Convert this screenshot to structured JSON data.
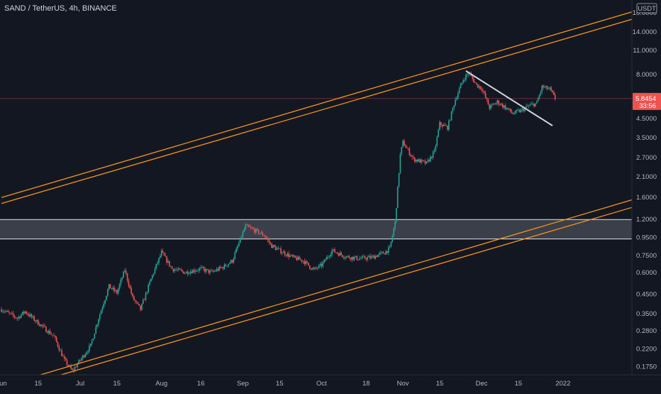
{
  "title": "SAND / TetherUS, 4h, BINANCE",
  "currency_label": "USDT",
  "colors": {
    "background": "#131722",
    "up": "#26a69a",
    "down": "#ef5350",
    "channel": "#f7931a",
    "trendline": "#d1d4dc",
    "zone_fill": "#5d606b",
    "zone_border": "#e0e3eb",
    "price_tag": "#ef5350"
  },
  "current_price": {
    "value": 5.8454,
    "label": "5.8454",
    "countdown": "33:56"
  },
  "chart_data": {
    "type": "candlestick",
    "y_scale": "log",
    "ylim": [
      0.16,
      19
    ],
    "y_ticks": [
      "18.0000",
      "14.0000",
      "11.0000",
      "8.0000",
      "6.0000",
      "4.5000",
      "3.5000",
      "2.7000",
      "2.1000",
      "1.6000",
      "1.2000",
      "0.9500",
      "0.7500",
      "0.6000",
      "0.4500",
      "0.3500",
      "0.2800",
      "0.2200",
      "0.1750"
    ],
    "x_ticks": [
      "Jun",
      "15",
      "Jul",
      "15",
      "Aug",
      "16",
      "Sep",
      "15",
      "Oct",
      "18",
      "Nov",
      "15",
      "Dec",
      "15",
      "2022"
    ],
    "price_path": [
      [
        "2021-06-01",
        0.37
      ],
      [
        "2021-06-07",
        0.33
      ],
      [
        "2021-06-10",
        0.36
      ],
      [
        "2021-06-15",
        0.31
      ],
      [
        "2021-06-21",
        0.26
      ],
      [
        "2021-06-25",
        0.19
      ],
      [
        "2021-06-28",
        0.165
      ],
      [
        "2021-07-01",
        0.19
      ],
      [
        "2021-07-05",
        0.23
      ],
      [
        "2021-07-08",
        0.33
      ],
      [
        "2021-07-12",
        0.5
      ],
      [
        "2021-07-15",
        0.46
      ],
      [
        "2021-07-18",
        0.62
      ],
      [
        "2021-07-21",
        0.43
      ],
      [
        "2021-07-24",
        0.37
      ],
      [
        "2021-07-28",
        0.55
      ],
      [
        "2021-08-01",
        0.78
      ],
      [
        "2021-08-05",
        0.63
      ],
      [
        "2021-08-10",
        0.6
      ],
      [
        "2021-08-16",
        0.63
      ],
      [
        "2021-08-20",
        0.6
      ],
      [
        "2021-08-25",
        0.65
      ],
      [
        "2021-08-28",
        0.7
      ],
      [
        "2021-08-31",
        0.92
      ],
      [
        "2021-09-02",
        1.1
      ],
      [
        "2021-09-05",
        1.05
      ],
      [
        "2021-09-09",
        0.98
      ],
      [
        "2021-09-12",
        0.85
      ],
      [
        "2021-09-15",
        0.8
      ],
      [
        "2021-09-20",
        0.73
      ],
      [
        "2021-09-24",
        0.7
      ],
      [
        "2021-09-28",
        0.62
      ],
      [
        "2021-10-01",
        0.66
      ],
      [
        "2021-10-05",
        0.8
      ],
      [
        "2021-10-10",
        0.74
      ],
      [
        "2021-10-15",
        0.72
      ],
      [
        "2021-10-20",
        0.73
      ],
      [
        "2021-10-25",
        0.78
      ],
      [
        "2021-10-27",
        0.82
      ],
      [
        "2021-10-29",
        1.15
      ],
      [
        "2021-10-31",
        2.8
      ],
      [
        "2021-11-01",
        3.3
      ],
      [
        "2021-11-05",
        2.65
      ],
      [
        "2021-11-10",
        2.5
      ],
      [
        "2021-11-13",
        2.9
      ],
      [
        "2021-11-15",
        4.2
      ],
      [
        "2021-11-18",
        4.0
      ],
      [
        "2021-11-21",
        5.8
      ],
      [
        "2021-11-24",
        7.5
      ],
      [
        "2021-11-26",
        8.2
      ],
      [
        "2021-11-29",
        7.0
      ],
      [
        "2021-12-01",
        6.7
      ],
      [
        "2021-12-04",
        5.2
      ],
      [
        "2021-12-07",
        5.6
      ],
      [
        "2021-12-10",
        5.2
      ],
      [
        "2021-12-13",
        4.8
      ],
      [
        "2021-12-16",
        5.0
      ],
      [
        "2021-12-19",
        5.3
      ],
      [
        "2021-12-22",
        5.5
      ],
      [
        "2021-12-24",
        6.8
      ],
      [
        "2021-12-27",
        6.6
      ],
      [
        "2021-12-29",
        5.85
      ]
    ],
    "channel_upper": [
      {
        "points": [
          [
            "2021-06-01",
            1.6
          ],
          [
            "2022-01-29",
            18.5
          ]
        ]
      },
      {
        "points": [
          [
            "2021-06-01",
            1.48
          ],
          [
            "2022-01-29",
            16.8
          ]
        ]
      }
    ],
    "channel_lower": [
      {
        "points": [
          [
            "2021-06-01",
            0.135
          ],
          [
            "2022-01-29",
            1.58
          ]
        ]
      },
      {
        "points": [
          [
            "2021-06-01",
            0.125
          ],
          [
            "2022-01-29",
            1.43
          ]
        ]
      }
    ],
    "trendline": {
      "points": [
        [
          "2021-11-25",
          8.4
        ],
        [
          "2021-12-28",
          4.1
        ]
      ]
    },
    "zone": {
      "top": 1.2,
      "bottom": 0.93
    }
  }
}
